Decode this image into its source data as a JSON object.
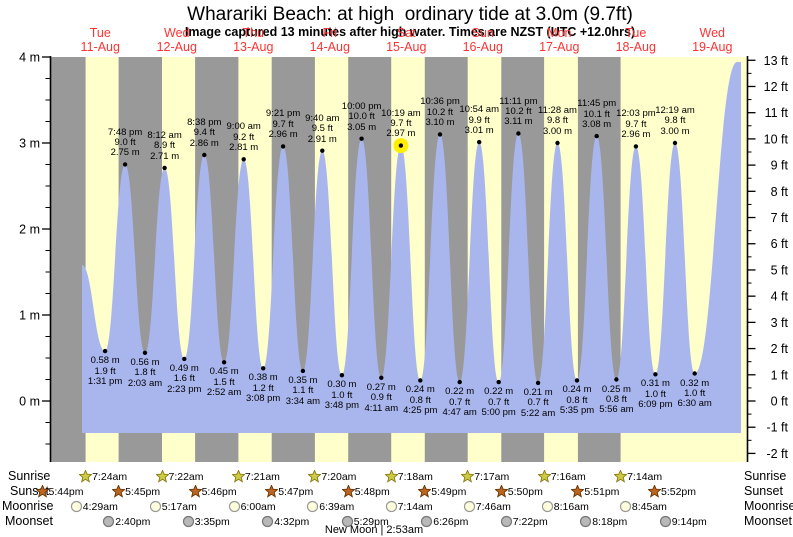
{
  "title": "Wharariki Beach: at high  ordinary tide at 3.0m (9.7ft)",
  "subtitle": "Image captured 13 minutes after high water. Times are NZST (UTC +12.0hrs)",
  "labels": {
    "sunrise": "Sunrise",
    "sunset": "Sunset",
    "moonrise": "Moonrise",
    "moonset": "Moonset"
  },
  "colors": {
    "day_band": "#ffffcc",
    "night_band": "#999999",
    "tide_fill": "#a9b6ee",
    "day_label": "#ff3333",
    "current_marker": "#ffee00",
    "sunrise_star": "#cccc44",
    "sunset_star": "#bb6622",
    "moonrise_fill": "#ffffdd",
    "moonset_fill": "#b8b8b8",
    "axis": "#000000"
  },
  "chart_data": {
    "type": "area",
    "title": "Wharariki Beach: at high  ordinary tide at 3.0m (9.7ft)",
    "subtitle": "Image captured 13 minutes after high water. Times are NZST (UTC +12.0hrs)",
    "ylabel_left_unit": "m",
    "ylabel_right_unit": "ft",
    "y_left_ticks_m": [
      4,
      3,
      2,
      1,
      0
    ],
    "y_right_ticks_ft": [
      13,
      12,
      11,
      10,
      9,
      8,
      7,
      6,
      5,
      4,
      3,
      2,
      1,
      0,
      -1,
      -2
    ],
    "y_left_range_m": [
      -0.71,
      4
    ],
    "days": [
      {
        "name": "Tue",
        "date": "11-Aug"
      },
      {
        "name": "Wed",
        "date": "12-Aug"
      },
      {
        "name": "Thu",
        "date": "13-Aug"
      },
      {
        "name": "Fri",
        "date": "14-Aug"
      },
      {
        "name": "Sat",
        "date": "15-Aug"
      },
      {
        "name": "Sun",
        "date": "16-Aug"
      },
      {
        "name": "Mon",
        "date": "17-Aug"
      },
      {
        "name": "Tue",
        "date": "18-Aug"
      },
      {
        "name": "Wed",
        "date": "19-Aug"
      }
    ],
    "high_tides": [
      {
        "day": 0,
        "time": "7:48 pm",
        "height_ft": "9.0",
        "height_m": "2.75"
      },
      {
        "day": 1,
        "time": "8:12 am",
        "height_ft": "8.9",
        "height_m": "2.71"
      },
      {
        "day": 1,
        "time": "8:38 pm",
        "height_ft": "9.4",
        "height_m": "2.86"
      },
      {
        "day": 2,
        "time": "9:00 am",
        "height_ft": "9.2",
        "height_m": "2.81"
      },
      {
        "day": 2,
        "time": "9:21 pm",
        "height_ft": "9.7",
        "height_m": "2.96"
      },
      {
        "day": 3,
        "time": "9:40 am",
        "height_ft": "9.5",
        "height_m": "2.91"
      },
      {
        "day": 3,
        "time": "10:00 pm",
        "height_ft": "10.0",
        "height_m": "3.05"
      },
      {
        "day": 4,
        "time": "10:19 am",
        "height_ft": "9.7",
        "height_m": "2.97"
      },
      {
        "day": 4,
        "time": "10:36 pm",
        "height_ft": "10.2",
        "height_m": "3.10"
      },
      {
        "day": 5,
        "time": "10:54 am",
        "height_ft": "9.9",
        "height_m": "3.01"
      },
      {
        "day": 5,
        "time": "11:11 pm",
        "height_ft": "10.2",
        "height_m": "3.11"
      },
      {
        "day": 6,
        "time": "11:28 am",
        "height_ft": "9.8",
        "height_m": "3.00"
      },
      {
        "day": 6,
        "time": "11:45 pm",
        "height_ft": "10.1",
        "height_m": "3.08"
      },
      {
        "day": 7,
        "time": "12:03 pm",
        "height_ft": "9.7",
        "height_m": "2.96"
      },
      {
        "day": 8,
        "time": "12:19 am",
        "height_ft": "9.8",
        "height_m": "3.00"
      }
    ],
    "low_tides": [
      {
        "day": 0,
        "time": "1:31 pm",
        "height_m": "0.58",
        "height_ft": "1.9"
      },
      {
        "day": 1,
        "time": "2:03 am",
        "height_m": "0.56",
        "height_ft": "1.8"
      },
      {
        "day": 1,
        "time": "2:23 pm",
        "height_m": "0.49",
        "height_ft": "1.6"
      },
      {
        "day": 2,
        "time": "2:52 am",
        "height_m": "0.45",
        "height_ft": "1.5"
      },
      {
        "day": 2,
        "time": "3:08 pm",
        "height_m": "0.38",
        "height_ft": "1.2"
      },
      {
        "day": 3,
        "time": "3:34 am",
        "height_m": "0.35",
        "height_ft": "1.1"
      },
      {
        "day": 3,
        "time": "3:48 pm",
        "height_m": "0.30",
        "height_ft": "1.0"
      },
      {
        "day": 4,
        "time": "4:11 am",
        "height_m": "0.27",
        "height_ft": "0.9"
      },
      {
        "day": 4,
        "time": "4:25 pm",
        "height_m": "0.24",
        "height_ft": "0.8"
      },
      {
        "day": 5,
        "time": "4:47 am",
        "height_m": "0.22",
        "height_ft": "0.7"
      },
      {
        "day": 5,
        "time": "5:00 pm",
        "height_m": "0.22",
        "height_ft": "0.7"
      },
      {
        "day": 6,
        "time": "5:22 am",
        "height_m": "0.21",
        "height_ft": "0.7"
      },
      {
        "day": 6,
        "time": "5:35 pm",
        "height_m": "0.24",
        "height_ft": "0.8"
      },
      {
        "day": 7,
        "time": "5:56 am",
        "height_m": "0.25",
        "height_ft": "0.8"
      },
      {
        "day": 7,
        "time": "6:09 pm",
        "height_m": "0.31",
        "height_ft": "1.0"
      },
      {
        "day": 8,
        "time": "6:30 am",
        "height_m": "0.32",
        "height_ft": "1.0"
      }
    ],
    "current": {
      "high_tide_index": 7
    },
    "astro": {
      "sunrise": [
        {
          "day": 0,
          "time": "7:24am"
        },
        {
          "day": 1,
          "time": "7:22am"
        },
        {
          "day": 2,
          "time": "7:21am"
        },
        {
          "day": 3,
          "time": "7:20am"
        },
        {
          "day": 4,
          "time": "7:18am"
        },
        {
          "day": 5,
          "time": "7:17am"
        },
        {
          "day": 6,
          "time": "7:16am"
        },
        {
          "day": 7,
          "time": "7:14am"
        }
      ],
      "sunset": [
        {
          "day": -1,
          "time": "5:44pm"
        },
        {
          "day": 0,
          "time": "5:45pm"
        },
        {
          "day": 1,
          "time": "5:46pm"
        },
        {
          "day": 2,
          "time": "5:47pm"
        },
        {
          "day": 3,
          "time": "5:48pm"
        },
        {
          "day": 4,
          "time": "5:49pm"
        },
        {
          "day": 5,
          "time": "5:50pm"
        },
        {
          "day": 6,
          "time": "5:51pm"
        },
        {
          "day": 7,
          "time": "5:52pm"
        }
      ],
      "moonrise": [
        {
          "day": 0,
          "time": "4:29am"
        },
        {
          "day": 1,
          "time": "5:17am"
        },
        {
          "day": 2,
          "time": "6:00am"
        },
        {
          "day": 3,
          "time": "6:39am"
        },
        {
          "day": 4,
          "time": "7:14am"
        },
        {
          "day": 5,
          "time": "7:46am"
        },
        {
          "day": 6,
          "time": "8:16am"
        },
        {
          "day": 7,
          "time": "8:45am"
        }
      ],
      "moonset": [
        {
          "day": 0,
          "time": "2:40pm"
        },
        {
          "day": 1,
          "time": "3:35pm"
        },
        {
          "day": 2,
          "time": "4:32pm"
        },
        {
          "day": 3,
          "time": "5:29pm"
        },
        {
          "day": 4,
          "time": "6:26pm"
        },
        {
          "day": 5,
          "time": "7:22pm"
        },
        {
          "day": 6,
          "time": "8:18pm"
        },
        {
          "day": 7,
          "time": "9:14pm"
        }
      ],
      "moon_phase": "New Moon | 2:53am"
    }
  }
}
